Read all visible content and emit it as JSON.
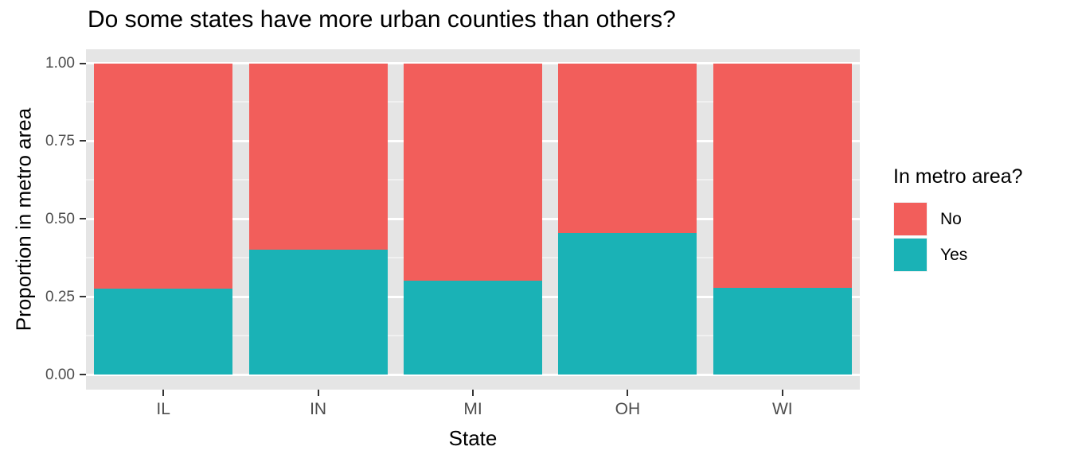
{
  "chart": {
    "title": "Do some states have more urban counties than others?",
    "xlabel": "State",
    "ylabel": "Proportion in metro area",
    "legend_title": "In metro area?"
  },
  "chart_data": {
    "type": "bar",
    "stacked": true,
    "normalized": "proportion",
    "title": "Do some states have more urban counties than others?",
    "xlabel": "State",
    "ylabel": "Proportion in metro area",
    "categories": [
      "IL",
      "IN",
      "MI",
      "OH",
      "WI"
    ],
    "series": [
      {
        "name": "Yes",
        "color": "#1AB2B6",
        "values": [
          0.275,
          0.402,
          0.301,
          0.455,
          0.278
        ]
      },
      {
        "name": "No",
        "color": "#F25E5B",
        "values": [
          0.725,
          0.598,
          0.699,
          0.545,
          0.722
        ]
      }
    ],
    "legend": {
      "title": "In metro area?",
      "position": "right",
      "entries": [
        {
          "label": "No",
          "color": "#F25E5B"
        },
        {
          "label": "Yes",
          "color": "#1AB2B6"
        }
      ]
    },
    "ylim": [
      0,
      1
    ],
    "yticks": [
      {
        "value": 0.0,
        "label": "0.00"
      },
      {
        "value": 0.25,
        "label": "0.25"
      },
      {
        "value": 0.5,
        "label": "0.50"
      },
      {
        "value": 0.75,
        "label": "0.75"
      },
      {
        "value": 1.0,
        "label": "1.00"
      }
    ],
    "minor_ticks": [
      0.125,
      0.375,
      0.625,
      0.875
    ],
    "grid": {
      "major": "on",
      "minor": "on"
    },
    "colors": {
      "panel_bg": "#E5E5E5",
      "major_grid": "#FFFFFF",
      "minor_grid": "#F1F1F1",
      "tick_text": "#4D4D4D",
      "tick_mark": "#333333",
      "title_text": "#000000"
    }
  }
}
